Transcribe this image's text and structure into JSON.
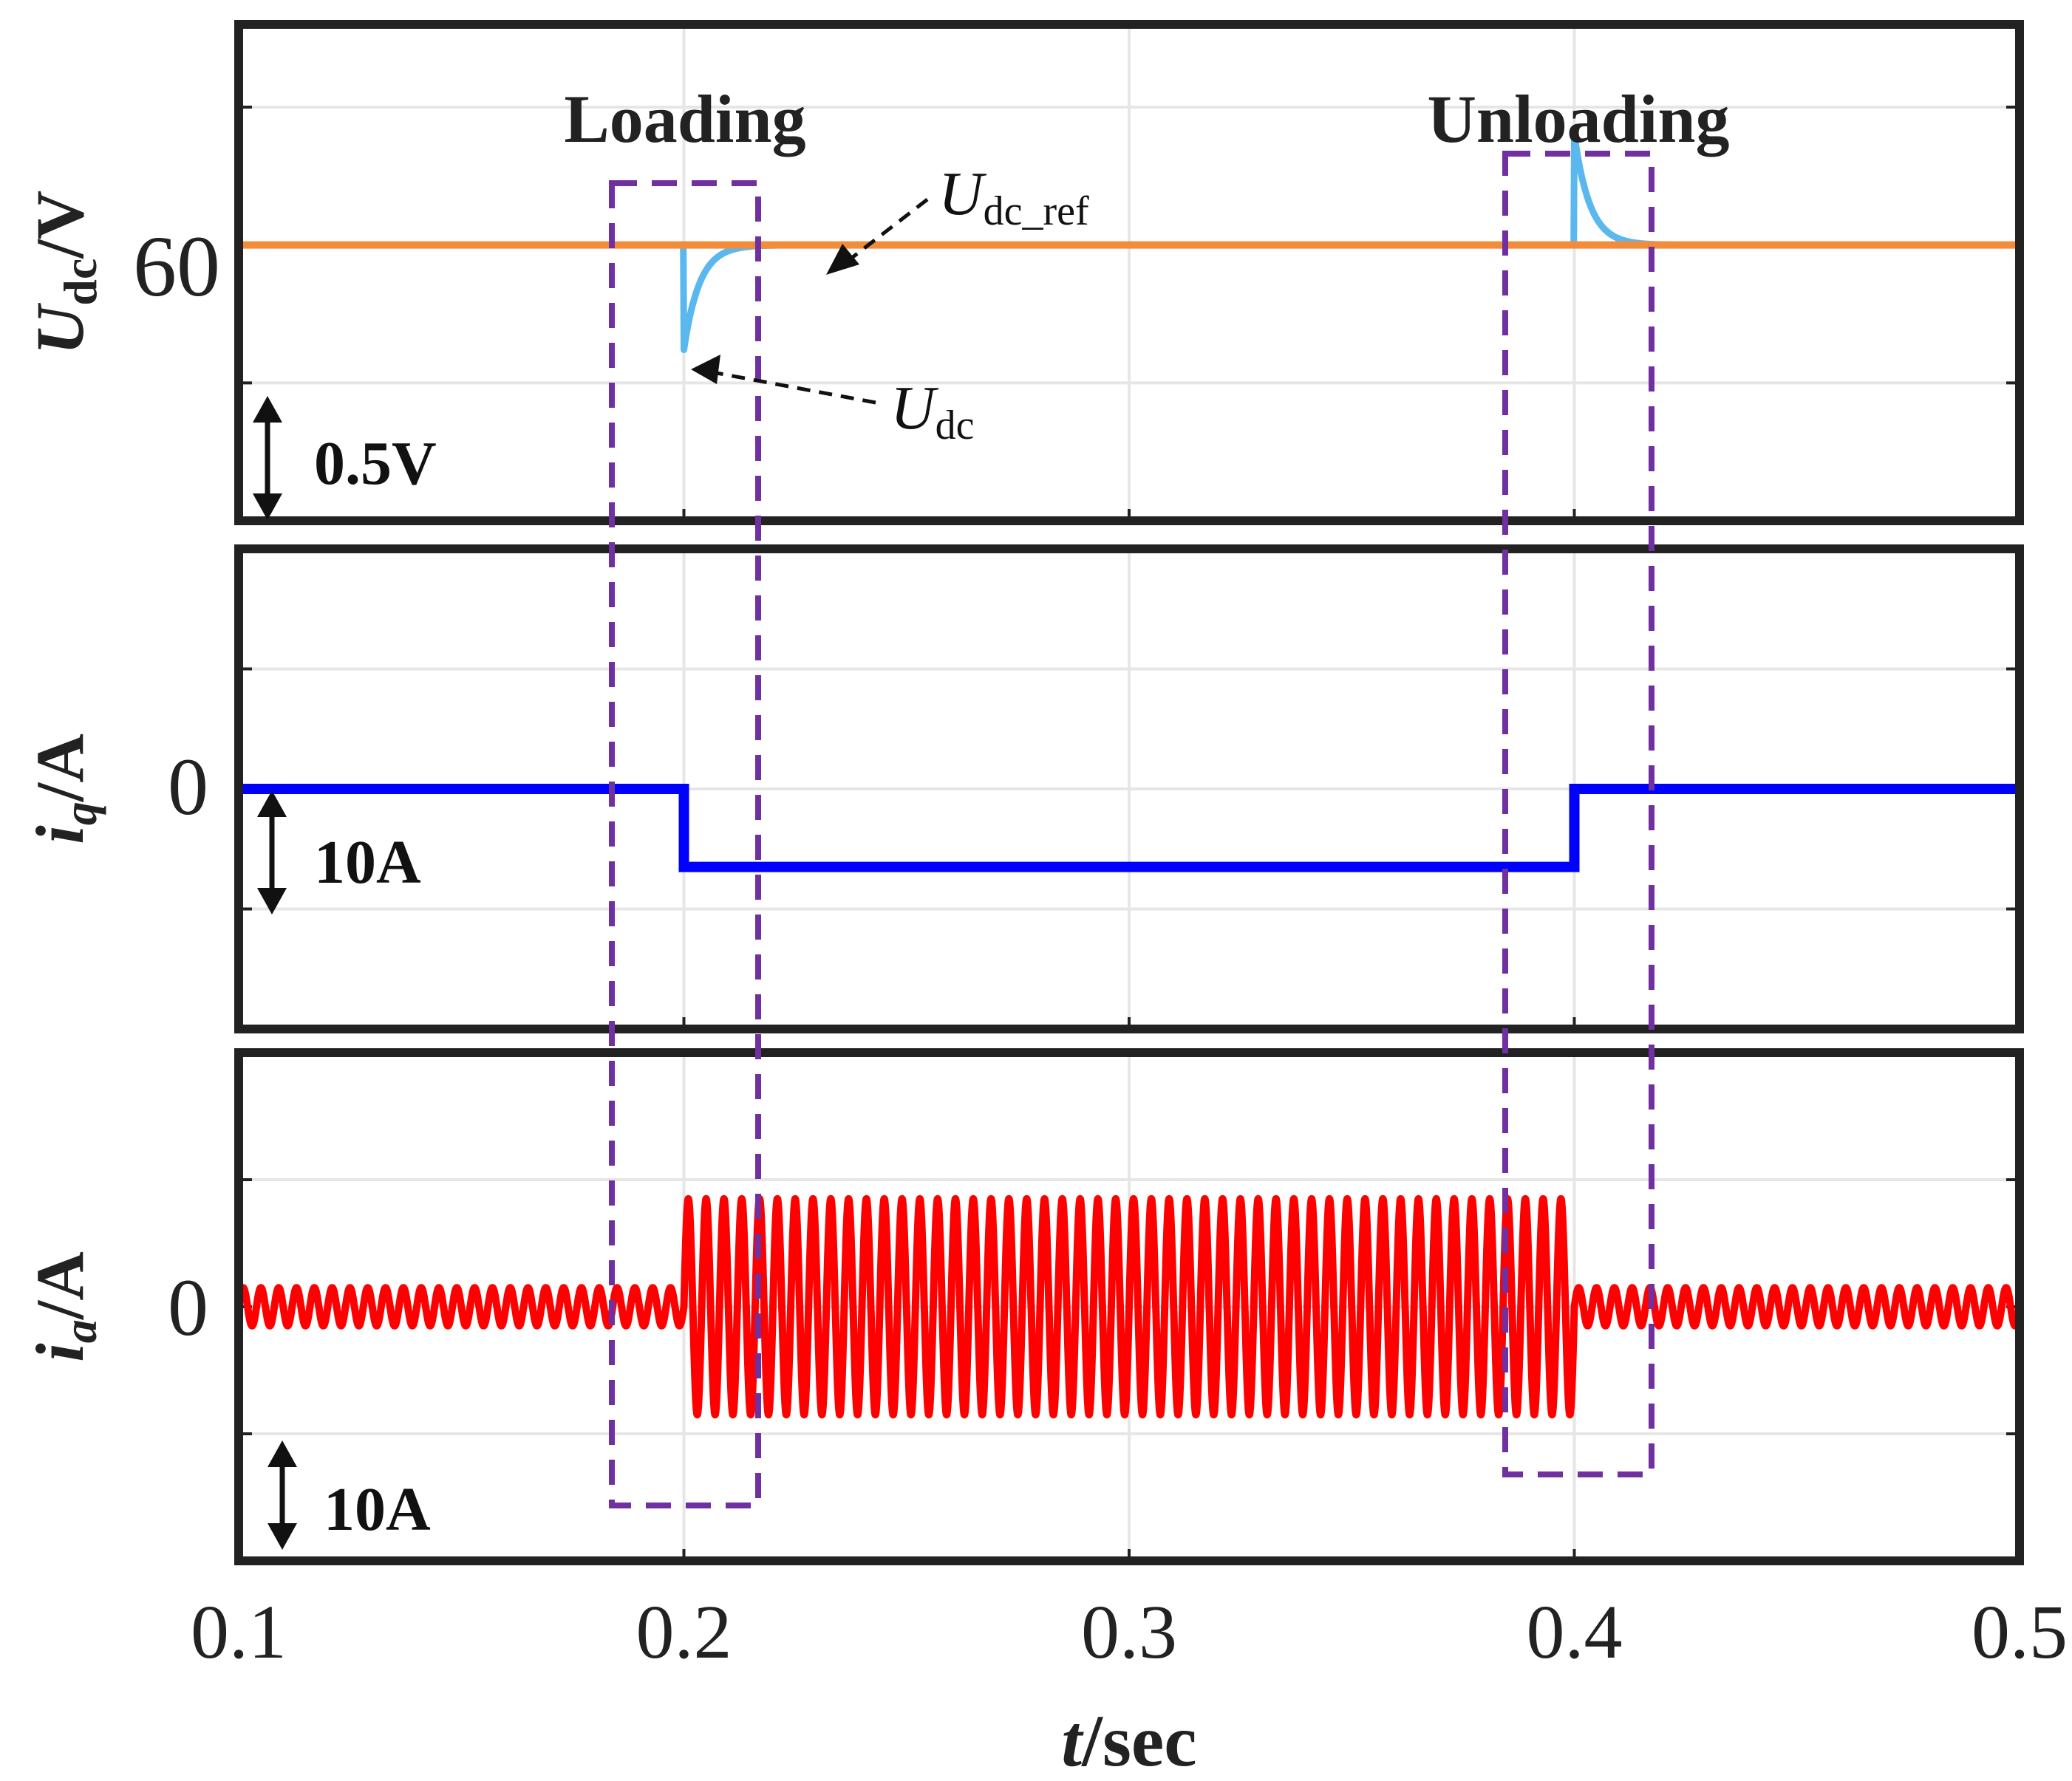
{
  "chart_data": {
    "type": "line",
    "x_axis": {
      "label_var": "t",
      "label_unit": "/sec",
      "range": [
        0.1,
        0.5
      ],
      "ticks": [
        0.1,
        0.2,
        0.3,
        0.4,
        0.5
      ],
      "tick_labels": [
        "0.1",
        "0.2",
        "0.3",
        "0.4",
        "0.5"
      ]
    },
    "events": [
      {
        "name": "Loading",
        "t": 0.2,
        "window": [
          0.185,
          0.218
        ]
      },
      {
        "name": "Unloading",
        "t": 0.4,
        "window": [
          0.385,
          0.418
        ]
      }
    ],
    "panels": [
      {
        "id": "udc",
        "ylabel_var": "U",
        "ylabel_sub": "dc",
        "ylabel_unit": "/V",
        "y_tick_label": "60",
        "y_tick_value": 60,
        "ylim": [
          59.0,
          60.8
        ],
        "grid_y": [
          59.5,
          60.0,
          60.5
        ],
        "scale_bar": {
          "label": "0.5V",
          "span": 0.5
        },
        "series": [
          {
            "name": "Udc_ref",
            "color": "#F28C3A",
            "kind": "constant",
            "value": 60.0
          },
          {
            "name": "Udc",
            "color": "#5BB8EE",
            "kind": "transients",
            "steady": 60.0,
            "transients": [
              {
                "t0": 0.2,
                "delta": -0.38,
                "tau": 0.0035
              },
              {
                "t0": 0.4,
                "delta": 0.4,
                "tau": 0.0035
              }
            ]
          }
        ],
        "annotations": [
          {
            "var": "U",
            "sub": "dc_ref",
            "points_to_t": 0.233,
            "points_to_y": 60.0
          },
          {
            "var": "U",
            "sub": "dc",
            "points_to_t": 0.2015,
            "points_to_y": 59.65
          }
        ]
      },
      {
        "id": "iq",
        "ylabel_var": "i",
        "ylabel_sub": "q",
        "ylabel_unit": "/A",
        "y_tick_label": "0",
        "y_tick_value": 0,
        "ylim": [
          -20,
          20
        ],
        "grid_y": [
          -10,
          0,
          10
        ],
        "scale_bar": {
          "label": "10A",
          "span": 10
        },
        "series": [
          {
            "name": "iq",
            "color": "#0000FF",
            "kind": "step",
            "levels": [
              {
                "from": 0.1,
                "to": 0.2,
                "value": 0
              },
              {
                "from": 0.2,
                "to": 0.4,
                "value": -6.5
              },
              {
                "from": 0.4,
                "to": 0.5,
                "value": 0
              }
            ]
          }
        ]
      },
      {
        "id": "ia",
        "ylabel_var": "i",
        "ylabel_sub": "a",
        "ylabel_unit": "/A",
        "y_tick_label": "0",
        "y_tick_value": 0,
        "ylim": [
          -20,
          20
        ],
        "grid_y": [
          -10,
          0,
          10
        ],
        "scale_bar": {
          "label": "10A",
          "span": 10
        },
        "series": [
          {
            "name": "ia",
            "color": "#FF0000",
            "kind": "sinusoid",
            "frequency_hz": 250,
            "amplitude": [
              {
                "from": 0.1,
                "to": 0.2,
                "value": 1.5
              },
              {
                "from": 0.2,
                "to": 0.4,
                "value": 8.5
              },
              {
                "from": 0.4,
                "to": 0.5,
                "value": 1.5
              }
            ]
          }
        ]
      }
    ]
  }
}
